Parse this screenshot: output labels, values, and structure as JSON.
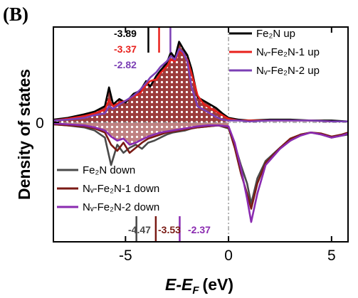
{
  "panel_label": "(B)",
  "chart_data": {
    "type": "line",
    "xlabel_main": "E-E",
    "xlabel_sub": "F",
    "xlabel_unit": "(eV)",
    "ylabel": "Density of states",
    "xlim": [
      -8.5,
      5.8
    ],
    "ylim": [
      -1.0,
      1.0
    ],
    "xticks": [
      -5,
      0,
      5
    ],
    "yticks": [
      0
    ],
    "zero_line_x": 0,
    "zero_line_y": 0,
    "legend_up_placement": "top-right",
    "legend_down_placement": "bottom-left",
    "series": [
      {
        "name": "Fe₂N up",
        "color": "#000000",
        "spin": "up",
        "x": [
          -8.5,
          -7.8,
          -7.0,
          -6.5,
          -6.0,
          -5.8,
          -5.6,
          -5.3,
          -5.0,
          -4.6,
          -4.3,
          -4.0,
          -3.8,
          -3.5,
          -3.3,
          -3.0,
          -2.8,
          -2.6,
          -2.4,
          -2.2,
          -2.0,
          -1.8,
          -1.5,
          -1.2,
          -0.9,
          -0.6,
          -0.3,
          0.0,
          0.5,
          1.0,
          2.0,
          3.0,
          4.0,
          5.0,
          5.8
        ],
        "values": [
          0.03,
          0.05,
          0.09,
          0.12,
          0.18,
          0.39,
          0.2,
          0.26,
          0.22,
          0.32,
          0.35,
          0.46,
          0.4,
          0.52,
          0.58,
          0.66,
          0.78,
          0.72,
          0.9,
          0.82,
          0.75,
          0.6,
          0.28,
          0.24,
          0.2,
          0.16,
          0.1,
          0.05,
          0.03,
          0.02,
          0.03,
          0.03,
          0.02,
          0.02,
          0.01
        ]
      },
      {
        "name": "Nᵥ-Fe₂N-1 up",
        "color": "#e8201c",
        "spin": "up",
        "x": [
          -8.5,
          -7.8,
          -7.0,
          -6.5,
          -6.0,
          -5.8,
          -5.6,
          -5.3,
          -5.0,
          -4.6,
          -4.3,
          -4.0,
          -3.8,
          -3.5,
          -3.3,
          -3.0,
          -2.8,
          -2.6,
          -2.4,
          -2.2,
          -2.0,
          -1.8,
          -1.5,
          -1.2,
          -0.9,
          -0.6,
          -0.3,
          0.0,
          0.5,
          1.0,
          2.0,
          3.0,
          4.0,
          5.0,
          5.8
        ],
        "values": [
          0.02,
          0.04,
          0.07,
          0.1,
          0.14,
          0.25,
          0.18,
          0.22,
          0.24,
          0.29,
          0.32,
          0.42,
          0.46,
          0.48,
          0.55,
          0.62,
          0.7,
          0.68,
          0.8,
          0.76,
          0.7,
          0.55,
          0.3,
          0.2,
          0.16,
          0.12,
          0.08,
          0.04,
          0.02,
          0.02,
          0.02,
          0.02,
          0.02,
          0.01,
          0.01
        ]
      },
      {
        "name": "Nᵥ-Fe₂N-2 up",
        "color": "#7b3fb5",
        "spin": "up",
        "x": [
          -8.5,
          -7.8,
          -7.0,
          -6.5,
          -6.0,
          -5.8,
          -5.6,
          -5.3,
          -5.0,
          -4.6,
          -4.3,
          -4.0,
          -3.8,
          -3.5,
          -3.3,
          -3.0,
          -2.8,
          -2.6,
          -2.4,
          -2.2,
          -2.0,
          -1.8,
          -1.5,
          -1.2,
          -0.9,
          -0.6,
          -0.3,
          0.0,
          0.5,
          1.0,
          2.0,
          3.0,
          4.0,
          5.0,
          5.8
        ],
        "values": [
          0.02,
          0.03,
          0.05,
          0.08,
          0.1,
          0.18,
          0.15,
          0.2,
          0.24,
          0.3,
          0.36,
          0.44,
          0.5,
          0.56,
          0.62,
          0.68,
          0.74,
          0.7,
          0.82,
          0.78,
          0.68,
          0.4,
          0.18,
          0.14,
          0.1,
          0.06,
          0.03,
          0.02,
          0.02,
          0.01,
          0.02,
          0.02,
          0.02,
          0.01,
          0.01
        ]
      },
      {
        "name": "Fe₂N down",
        "color": "#4a4a4a",
        "spin": "down",
        "x": [
          -8.5,
          -7.8,
          -7.0,
          -6.5,
          -6.0,
          -5.7,
          -5.4,
          -5.1,
          -4.8,
          -4.5,
          -4.2,
          -3.9,
          -3.6,
          -3.3,
          -3.0,
          -2.7,
          -2.4,
          -2.1,
          -1.8,
          -1.5,
          -1.0,
          -0.5,
          0.0,
          0.3,
          0.6,
          0.9,
          1.1,
          1.4,
          1.8,
          2.5,
          3.0,
          3.5,
          4.0,
          4.5,
          5.0,
          5.5,
          5.8
        ],
        "values": [
          -0.02,
          -0.03,
          -0.05,
          -0.08,
          -0.15,
          -0.42,
          -0.22,
          -0.3,
          -0.25,
          -0.22,
          -0.26,
          -0.2,
          -0.18,
          -0.15,
          -0.12,
          -0.1,
          -0.09,
          -0.08,
          -0.06,
          -0.05,
          -0.04,
          -0.03,
          -0.06,
          -0.22,
          -0.42,
          -0.6,
          -0.8,
          -0.55,
          -0.38,
          -0.25,
          -0.18,
          -0.12,
          -0.1,
          -0.12,
          -0.15,
          -0.13,
          -0.12
        ]
      },
      {
        "name": "Nᵥ-Fe₂N-1 down",
        "color": "#7a1a14",
        "spin": "down",
        "x": [
          -8.5,
          -7.8,
          -7.0,
          -6.5,
          -6.0,
          -5.7,
          -5.4,
          -5.1,
          -4.8,
          -4.5,
          -4.2,
          -3.9,
          -3.6,
          -3.3,
          -3.0,
          -2.7,
          -2.4,
          -2.1,
          -1.8,
          -1.5,
          -1.0,
          -0.5,
          0.0,
          0.3,
          0.6,
          0.9,
          1.1,
          1.4,
          1.8,
          2.5,
          3.0,
          3.5,
          4.0,
          4.5,
          5.0,
          5.5,
          5.8
        ],
        "values": [
          -0.02,
          -0.03,
          -0.04,
          -0.06,
          -0.1,
          -0.22,
          -0.28,
          -0.2,
          -0.3,
          -0.25,
          -0.2,
          -0.16,
          -0.14,
          -0.12,
          -0.1,
          -0.09,
          -0.08,
          -0.07,
          -0.06,
          -0.05,
          -0.04,
          -0.03,
          -0.05,
          -0.25,
          -0.5,
          -0.7,
          -0.85,
          -0.6,
          -0.4,
          -0.25,
          -0.16,
          -0.12,
          -0.1,
          -0.11,
          -0.14,
          -0.12,
          -0.1
        ]
      },
      {
        "name": "Nᵥ-Fe₂N-2 down",
        "color": "#8a2ab0",
        "spin": "down",
        "x": [
          -8.5,
          -7.8,
          -7.0,
          -6.5,
          -6.0,
          -5.7,
          -5.4,
          -5.1,
          -4.8,
          -4.5,
          -4.2,
          -3.9,
          -3.6,
          -3.3,
          -3.0,
          -2.7,
          -2.4,
          -2.1,
          -1.8,
          -1.5,
          -1.0,
          -0.5,
          0.0,
          0.3,
          0.6,
          0.9,
          1.1,
          1.4,
          1.8,
          2.5,
          3.0,
          3.5,
          4.0,
          4.5,
          5.0,
          5.5,
          5.8
        ],
        "values": [
          -0.01,
          -0.02,
          -0.03,
          -0.05,
          -0.08,
          -0.14,
          -0.18,
          -0.16,
          -0.22,
          -0.2,
          -0.17,
          -0.14,
          -0.12,
          -0.1,
          -0.09,
          -0.08,
          -0.07,
          -0.06,
          -0.05,
          -0.04,
          -0.03,
          -0.03,
          -0.04,
          -0.2,
          -0.45,
          -0.75,
          -0.98,
          -0.7,
          -0.42,
          -0.26,
          -0.18,
          -0.13,
          -0.1,
          -0.12,
          -0.15,
          -0.13,
          -0.11
        ]
      }
    ],
    "d_band_centers": [
      {
        "label": "-3.89",
        "value": -3.89,
        "color": "#000000",
        "spin": "up"
      },
      {
        "label": "-3.37",
        "value": -3.37,
        "color": "#e8201c",
        "spin": "up"
      },
      {
        "label": "-2.82",
        "value": -2.82,
        "color": "#7b3fb5",
        "spin": "up"
      },
      {
        "label": "-4.47",
        "value": -4.47,
        "color": "#4a4a4a",
        "spin": "down"
      },
      {
        "label": "-3.53",
        "value": -3.53,
        "color": "#7a1a14",
        "spin": "down"
      },
      {
        "label": "-2.37",
        "value": -2.37,
        "color": "#8a2ab0",
        "spin": "down"
      }
    ]
  }
}
